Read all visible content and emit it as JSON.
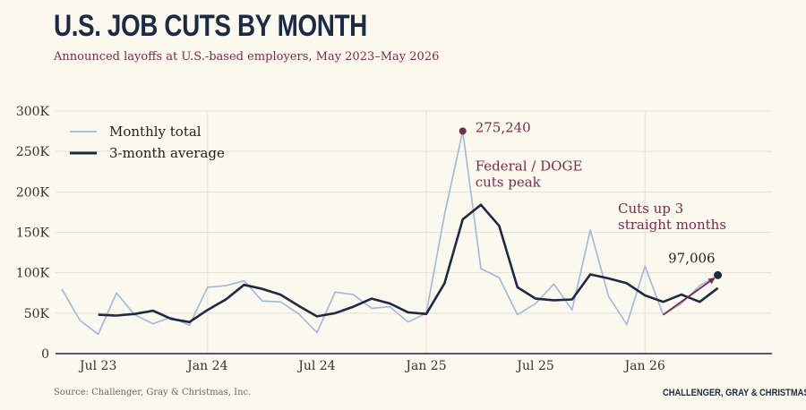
{
  "header": {
    "title": "U.S. JOB CUTS BY MONTH",
    "subtitle": "Announced layoffs at U.S.-based employers, May 2023–May 2026"
  },
  "footer": {
    "source": "Source: Challenger, Gray & Christmas, Inc.",
    "brand": "CHALLENGER, GRAY & CHRISTMAS"
  },
  "colors": {
    "background": "#fbf8ee",
    "monthly_line": "#9db8e0",
    "average_line": "#1c2a45",
    "annotation": "#7a2a4a",
    "grid": "#e4e0d2",
    "axis": "#1c2a45"
  },
  "chart_data": {
    "type": "line",
    "title": "U.S. JOB CUTS BY MONTH",
    "subtitle": "Announced layoffs at U.S.-based employers, May 2023–May 2026",
    "ylim": [
      0,
      300000
    ],
    "yticks": [
      0,
      50000,
      100000,
      150000,
      200000,
      250000,
      300000
    ],
    "ytick_labels": [
      "0",
      "50K",
      "100K",
      "150K",
      "200K",
      "250K",
      "300K"
    ],
    "xticks": [
      {
        "month": "2023-07",
        "label": "Jul 23"
      },
      {
        "month": "2024-01",
        "label": "Jan 24"
      },
      {
        "month": "2024-07",
        "label": "Jul 24"
      },
      {
        "month": "2025-01",
        "label": "Jan 25"
      },
      {
        "month": "2025-07",
        "label": "Jul 25"
      },
      {
        "month": "2026-01",
        "label": "Jan 26"
      }
    ],
    "x": [
      "2023-05",
      "2023-06",
      "2023-07",
      "2023-08",
      "2023-09",
      "2023-10",
      "2023-11",
      "2023-12",
      "2024-01",
      "2024-02",
      "2024-03",
      "2024-04",
      "2024-05",
      "2024-06",
      "2024-07",
      "2024-08",
      "2024-09",
      "2024-10",
      "2024-11",
      "2024-12",
      "2025-01",
      "2025-02",
      "2025-03",
      "2025-04",
      "2025-05",
      "2025-06",
      "2025-07",
      "2025-08",
      "2025-09",
      "2025-10",
      "2025-11",
      "2025-12",
      "2026-01",
      "2026-02",
      "2026-03",
      "2026-04",
      "2026-05"
    ],
    "grid": true,
    "legend_position": "top-left",
    "series": [
      {
        "name": "Monthly total",
        "values": [
          80000,
          41000,
          24000,
          75000,
          48000,
          37000,
          45000,
          35000,
          82000,
          84000,
          90000,
          65000,
          64000,
          49000,
          26000,
          76000,
          73000,
          56000,
          58000,
          39000,
          50000,
          172000,
          275240,
          105000,
          94000,
          48000,
          62000,
          86000,
          54000,
          153000,
          71000,
          36000,
          108000,
          48000,
          62000,
          84000,
          97006
        ]
      },
      {
        "name": "3-month average",
        "values": [
          null,
          null,
          48000,
          47000,
          49000,
          53000,
          43000,
          39000,
          54000,
          67000,
          85000,
          80000,
          73000,
          59000,
          46000,
          50000,
          58000,
          68000,
          62000,
          51000,
          49000,
          87000,
          166000,
          184000,
          158000,
          82000,
          68000,
          66000,
          67000,
          98000,
          93000,
          87000,
          72000,
          64000,
          73000,
          64000,
          81000
        ]
      }
    ],
    "annotations": {
      "peak_label": "275,240",
      "peak_note_line1": "Federal / DOGE",
      "peak_note_line2": "cuts peak",
      "trend_note_line1": "Cuts up 3",
      "trend_note_line2": "straight months",
      "last_label": "97,006"
    }
  }
}
